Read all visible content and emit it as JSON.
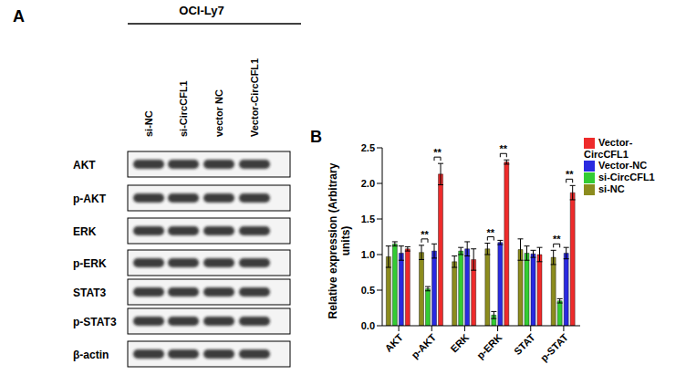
{
  "panel_a": {
    "label": "A",
    "cell_line": "OCI-Ly7",
    "lanes": [
      "si-NC",
      "si-CircCFL1",
      "vector NC",
      "Vector-CircCFL1"
    ],
    "rows": [
      "AKT",
      "p-AKT",
      "ERK",
      "p-ERK",
      "STAT3",
      "p-STAT3",
      "β-actin"
    ]
  },
  "chart_data": {
    "type": "bar",
    "panel_label": "B",
    "y_label": "Relative expression (Arbitrary units)",
    "categories": [
      "AKT",
      "p-AKT",
      "ERK",
      "p-ERK",
      "STAT",
      "p-STAT"
    ],
    "series": [
      {
        "name": "si-NC",
        "color": "#8c8c1e",
        "values": [
          0.97,
          1.03,
          0.9,
          1.08,
          1.07,
          0.96
        ],
        "errors": [
          0.15,
          0.1,
          0.08,
          0.08,
          0.15,
          0.1
        ]
      },
      {
        "name": "si-CircCFL1",
        "color": "#33cc33",
        "values": [
          1.15,
          0.52,
          1.05,
          0.15,
          1.02,
          0.35
        ],
        "errors": [
          0.03,
          0.03,
          0.05,
          0.05,
          0.1,
          0.03
        ]
      },
      {
        "name": "Vector-NC",
        "color": "#2a2ae0",
        "values": [
          1.02,
          1.05,
          1.08,
          1.17,
          1.01,
          1.02
        ],
        "errors": [
          0.1,
          0.1,
          0.1,
          0.03,
          0.05,
          0.08
        ]
      },
      {
        "name": "Vector-CircCFL1",
        "color": "#ee2b2b",
        "values": [
          1.08,
          2.13,
          0.93,
          2.3,
          1.0,
          1.87
        ],
        "errors": [
          0.03,
          0.15,
          0.15,
          0.03,
          0.1,
          0.1
        ]
      }
    ],
    "ylim": [
      0,
      2.5
    ],
    "yticks": [
      {
        "value": 0,
        "label": "0.0"
      },
      0.5,
      {
        "value": 1,
        "label": "1.0"
      },
      1.5,
      {
        "value": 2,
        "label": "2.0"
      },
      2.5
    ],
    "legend": "right",
    "annotations": [
      {
        "text": "**",
        "category": "p-AKT",
        "between": [
          "si-NC",
          "si-CircCFL1"
        ]
      },
      {
        "text": "**",
        "category": "p-AKT",
        "between": [
          "Vector-NC",
          "Vector-CircCFL1"
        ]
      },
      {
        "text": "**",
        "category": "p-ERK",
        "between": [
          "si-NC",
          "si-CircCFL1"
        ]
      },
      {
        "text": "**",
        "category": "p-ERK",
        "between": [
          "Vector-NC",
          "Vector-CircCFL1"
        ]
      },
      {
        "text": "**",
        "category": "p-STAT",
        "between": [
          "si-NC",
          "si-CircCFL1"
        ]
      },
      {
        "text": "**",
        "category": "p-STAT",
        "between": [
          "Vector-NC",
          "Vector-CircCFL1"
        ]
      }
    ]
  }
}
